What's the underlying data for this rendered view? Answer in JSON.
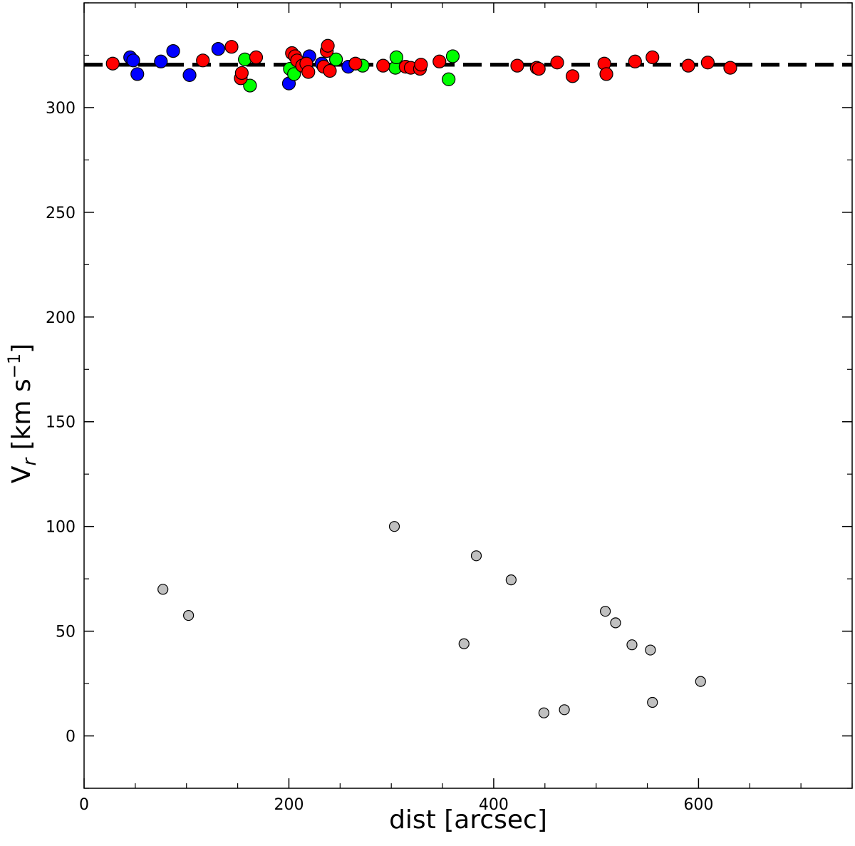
{
  "chart_data": {
    "type": "scatter",
    "xlabel": "dist [arcsec]",
    "ylabel_main": "V",
    "ylabel_sub": "r",
    "ylabel_rest": " [km s",
    "ylabel_sup": "−1",
    "ylabel_close": "]",
    "xlim": [
      0,
      750
    ],
    "ylim": [
      -25,
      350
    ],
    "xticks": [
      0,
      200,
      400,
      600
    ],
    "yticks": [
      0,
      50,
      100,
      150,
      200,
      250,
      300
    ],
    "x_minor_step": 50,
    "y_minor_step": 25,
    "grid": false,
    "reference_line": {
      "y": 320.5,
      "style": "dashed",
      "color": "#000000"
    },
    "series": [
      {
        "color": "#0000ff",
        "points": [
          [
            45,
            324
          ],
          [
            48,
            322.5
          ],
          [
            52,
            316
          ],
          [
            75,
            322
          ],
          [
            87,
            327
          ],
          [
            103,
            315.5
          ],
          [
            131,
            328
          ],
          [
            200,
            311.5
          ],
          [
            220,
            324.5
          ],
          [
            232,
            321
          ],
          [
            258,
            319.5
          ]
        ]
      },
      {
        "color": "#00ff00",
        "points": [
          [
            157,
            323
          ],
          [
            162,
            310.5
          ],
          [
            201,
            318.5
          ],
          [
            205,
            316
          ],
          [
            246,
            323
          ],
          [
            272,
            320
          ],
          [
            304,
            319
          ],
          [
            305,
            324
          ],
          [
            356,
            313.5
          ],
          [
            360,
            324.5
          ]
        ]
      },
      {
        "color": "#ff0000",
        "points": [
          [
            28,
            321
          ],
          [
            116,
            322.5
          ],
          [
            144,
            329
          ],
          [
            153,
            314
          ],
          [
            154,
            316.5
          ],
          [
            168,
            324
          ],
          [
            203,
            326
          ],
          [
            206,
            324.5
          ],
          [
            208,
            322.5
          ],
          [
            213,
            320
          ],
          [
            217,
            321
          ],
          [
            219,
            317
          ],
          [
            234,
            319.5
          ],
          [
            237,
            327
          ],
          [
            238,
            329.5
          ],
          [
            240,
            317.5
          ],
          [
            265,
            321
          ],
          [
            292,
            320
          ],
          [
            314,
            319.5
          ],
          [
            319,
            319
          ],
          [
            328,
            318.5
          ],
          [
            329,
            320.5
          ],
          [
            347,
            322
          ],
          [
            423,
            320
          ],
          [
            442,
            319
          ],
          [
            444,
            318.5
          ],
          [
            462,
            321.5
          ],
          [
            477,
            315
          ],
          [
            508,
            321
          ],
          [
            510,
            316
          ],
          [
            538,
            322
          ],
          [
            555,
            324
          ],
          [
            590,
            320
          ],
          [
            609,
            321.5
          ],
          [
            631,
            319
          ]
        ]
      },
      {
        "color": "#c0c0c0",
        "small": true,
        "points": [
          [
            77,
            70
          ],
          [
            102,
            57.5
          ],
          [
            303,
            100
          ],
          [
            371,
            44
          ],
          [
            383,
            86
          ],
          [
            417,
            74.5
          ],
          [
            449,
            11
          ],
          [
            469,
            12.5
          ],
          [
            509,
            59.5
          ],
          [
            519,
            54
          ],
          [
            535,
            43.5
          ],
          [
            553,
            41
          ],
          [
            555,
            16
          ],
          [
            602,
            26
          ]
        ]
      }
    ]
  }
}
